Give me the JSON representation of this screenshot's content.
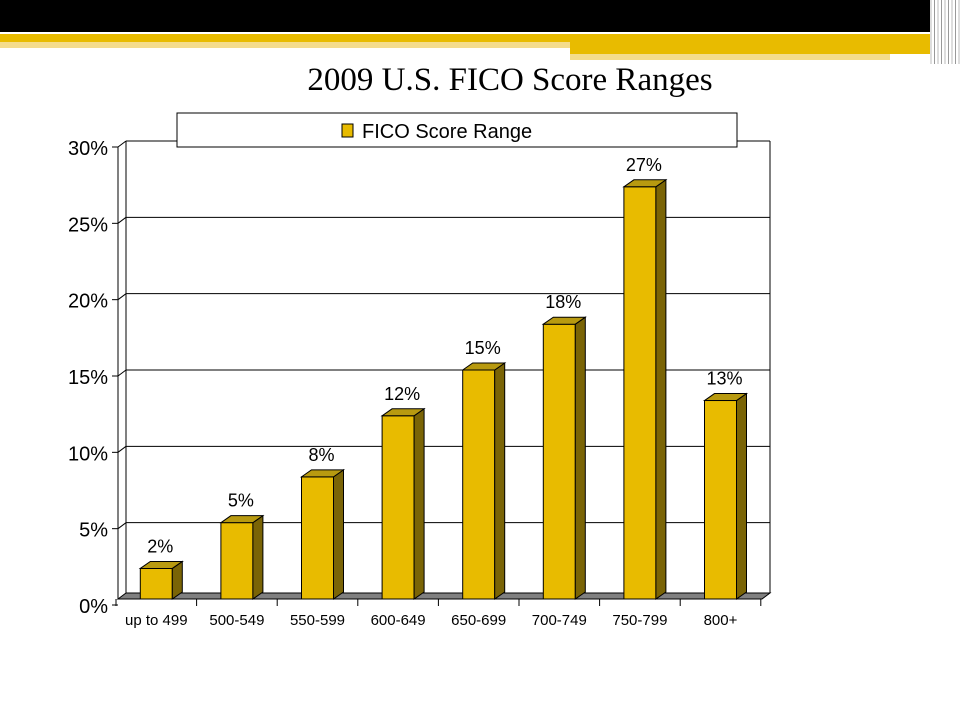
{
  "slide": {
    "title": "2009 U.S. FICO Score Ranges"
  },
  "colors": {
    "bar_front": "#E8BB00",
    "bar_side": "#7A6406",
    "bar_top": "#B89A10",
    "floor": "#808080",
    "top_band_dark": "#000000",
    "top_band_gold": "#E8BB00",
    "top_band_light": "#F4DC8C"
  },
  "chart_data": {
    "type": "bar",
    "categories": [
      "up to 499",
      "500-549",
      "550-599",
      "600-649",
      "650-699",
      "700-749",
      "750-799",
      "800+"
    ],
    "series": [
      {
        "name": "FICO Score Range",
        "values": [
          2,
          5,
          8,
          12,
          15,
          18,
          27,
          13
        ]
      }
    ],
    "data_labels": [
      "2%",
      "5%",
      "8%",
      "12%",
      "15%",
      "18%",
      "27%",
      "13%"
    ],
    "ylim": [
      0,
      30
    ],
    "yticks": [
      "0%",
      "5%",
      "10%",
      "15%",
      "20%",
      "25%",
      "30%"
    ],
    "ytick_values": [
      0,
      5,
      10,
      15,
      20,
      25,
      30
    ],
    "grid": true,
    "legend": "top",
    "style": "3d"
  }
}
